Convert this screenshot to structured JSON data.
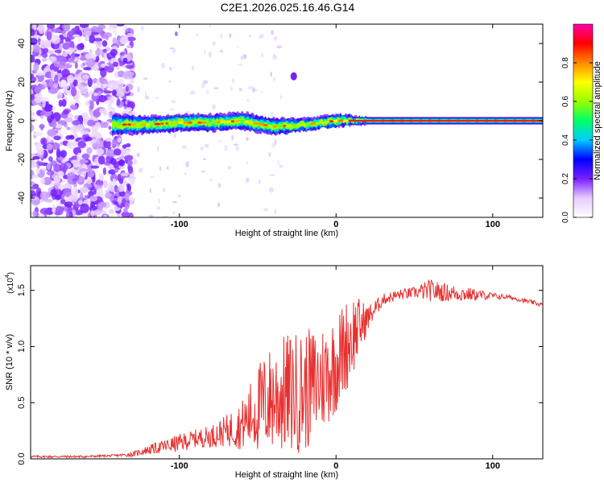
{
  "figure": {
    "title": "C2E1.2026.025.16.46.G14"
  },
  "chart_data": [
    {
      "type": "heatmap",
      "title": "C2E1.2026.025.16.46.G14",
      "xlabel": "Height of straight line (km)",
      "ylabel": "Frequency (Hz)",
      "xlim": [
        -195,
        132
      ],
      "ylim": [
        -50,
        50
      ],
      "xticks": [
        -100,
        0,
        100
      ],
      "xtick_labels": [
        "-100",
        "0",
        "100"
      ],
      "yticks": [
        -40,
        -20,
        0,
        20,
        40
      ],
      "ytick_labels": [
        "-40",
        "-20",
        "0",
        "20",
        "40"
      ],
      "signal_ridge": {
        "description_points_km": [
          -140,
          -120,
          -100,
          -80,
          -60,
          -40,
          -20,
          0,
          20,
          60,
          100,
          130
        ],
        "center_hz": [
          -2,
          -2,
          -1,
          -1,
          0,
          -3,
          -2,
          0,
          0,
          0,
          0,
          0
        ],
        "halfwidth_hz": [
          5,
          4,
          4,
          4,
          4,
          4,
          3,
          3,
          2,
          2,
          2,
          2
        ]
      },
      "noise_region_km": [
        -195,
        -135
      ],
      "isolated_blob": {
        "x_km": -27,
        "y_hz": 23
      },
      "colorbar": {
        "label": "Normalized spectral amplitude",
        "range": [
          0,
          1
        ],
        "ticks": [
          0.0,
          0.2,
          0.4,
          0.6,
          0.8
        ],
        "tick_labels": [
          "0.0",
          "0.2",
          "0.4",
          "0.6",
          "0.8"
        ],
        "colors": [
          "#ffffff",
          "#e6ccff",
          "#7a1fff",
          "#0000ff",
          "#00ccff",
          "#00ff66",
          "#99ff00",
          "#ffff00",
          "#ff8800",
          "#ff0000",
          "#ff00aa"
        ]
      }
    },
    {
      "type": "line",
      "xlabel": "Height of straight line (km)",
      "ylabel": "SNR (10 * v/v)",
      "y_multiplier_label": "(x10",
      "y_multiplier_exp": "4",
      "xlim": [
        -195,
        132
      ],
      "ylim": [
        0,
        1.72
      ],
      "xticks": [
        -100,
        0,
        100
      ],
      "xtick_labels": [
        "-100",
        "0",
        "100"
      ],
      "yticks": [
        0.0,
        0.5,
        1.0,
        1.5
      ],
      "ytick_labels": [
        "0.0",
        "0.5",
        "1.0",
        "1.5"
      ],
      "series": [
        {
          "name": "SNR",
          "color": "#e83030",
          "x": [
            -195,
            -180,
            -160,
            -140,
            -130,
            -120,
            -110,
            -100,
            -90,
            -80,
            -70,
            -60,
            -50,
            -40,
            -30,
            -20,
            -10,
            0,
            10,
            20,
            30,
            40,
            50,
            60,
            70,
            80,
            90,
            100,
            110,
            120,
            132
          ],
          "mean": [
            0.02,
            0.02,
            0.02,
            0.03,
            0.04,
            0.08,
            0.11,
            0.14,
            0.18,
            0.2,
            0.25,
            0.3,
            0.45,
            0.55,
            0.58,
            0.6,
            0.7,
            0.85,
            1.1,
            1.25,
            1.42,
            1.46,
            1.48,
            1.5,
            1.48,
            1.47,
            1.46,
            1.45,
            1.44,
            1.41,
            1.37
          ],
          "spread": [
            0.01,
            0.01,
            0.01,
            0.01,
            0.02,
            0.04,
            0.06,
            0.08,
            0.08,
            0.1,
            0.14,
            0.22,
            0.4,
            0.5,
            0.55,
            0.55,
            0.5,
            0.45,
            0.4,
            0.12,
            0.05,
            0.05,
            0.05,
            0.1,
            0.08,
            0.07,
            0.05,
            0.03,
            0.02,
            0.02,
            0.02
          ]
        }
      ]
    }
  ]
}
